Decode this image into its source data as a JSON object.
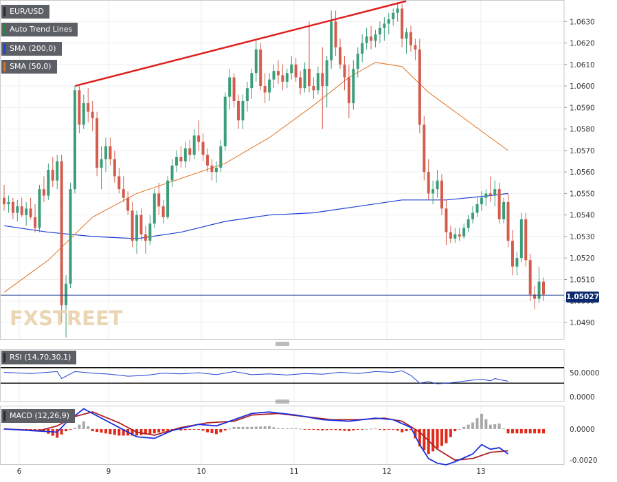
{
  "legend": {
    "symbol": "EUR/USD",
    "trend": "Auto Trend Lines",
    "sma200": "SMA (200,0)",
    "sma50": "SMA (50,0)",
    "rsi": "RSI (14,70,30,1)",
    "macd": "MACD (12,26,9)"
  },
  "logo_text": "FXSTREET",
  "last_price_label": "1.05027",
  "colors": {
    "up": "#3a9e7a",
    "down": "#d45c4c",
    "trendline": "#e02020",
    "sma200": "#1f3fd6",
    "sma50": "#e07020",
    "rsi_line": "#2040d0",
    "macd_line": "#1a2fe0",
    "signal_line": "#b02020",
    "hist_pos": "#a8a8a8",
    "hist_neg": "#e02a1a"
  },
  "chart_data": [
    {
      "type": "candlestick",
      "title": "EUR/USD",
      "x_ticks": [
        "6",
        "9",
        "10",
        "11",
        "12",
        "13"
      ],
      "y_ticks": [
        "1.0490",
        "1.0500",
        "1.0510",
        "1.0520",
        "1.0530",
        "1.0540",
        "1.0550",
        "1.0560",
        "1.0570",
        "1.0580",
        "1.0590",
        "1.0600",
        "1.0610",
        "1.0620",
        "1.0630"
      ],
      "ylim": [
        1.0482,
        1.064
      ],
      "last_price": 1.05027,
      "candles": [
        [
          1.0548,
          1.0554,
          1.0542,
          1.0545
        ],
        [
          1.0545,
          1.0549,
          1.0541,
          1.0546
        ],
        [
          1.0546,
          1.0548,
          1.0538,
          1.0541
        ],
        [
          1.0541,
          1.0547,
          1.0537,
          1.0544
        ],
        [
          1.0544,
          1.0548,
          1.0539,
          1.054
        ],
        [
          1.054,
          1.0546,
          1.0535,
          1.0543
        ],
        [
          1.0543,
          1.0548,
          1.0538,
          1.0539
        ],
        [
          1.0539,
          1.0545,
          1.0532,
          1.0534
        ],
        [
          1.0534,
          1.0554,
          1.0532,
          1.0552
        ],
        [
          1.0552,
          1.0558,
          1.0546,
          1.0549
        ],
        [
          1.0549,
          1.0564,
          1.0547,
          1.0561
        ],
        [
          1.0561,
          1.0567,
          1.0553,
          1.0556
        ],
        [
          1.0556,
          1.0568,
          1.0552,
          1.0565
        ],
        [
          1.0565,
          1.0568,
          1.049,
          1.0498
        ],
        [
          1.0498,
          1.0512,
          1.0483,
          1.0508
        ],
        [
          1.0508,
          1.0555,
          1.0506,
          1.0552
        ],
        [
          1.0552,
          1.06,
          1.055,
          1.0598
        ],
        [
          1.0598,
          1.06,
          1.0578,
          1.0582
        ],
        [
          1.0582,
          1.0596,
          1.058,
          1.0592
        ],
        [
          1.0592,
          1.0599,
          1.0583,
          1.0588
        ],
        [
          1.0588,
          1.0593,
          1.0579,
          1.0585
        ],
        [
          1.0585,
          1.0588,
          1.0558,
          1.0562
        ],
        [
          1.0562,
          1.0572,
          1.0552,
          1.0566
        ],
        [
          1.0566,
          1.0576,
          1.056,
          1.0572
        ],
        [
          1.0572,
          1.0576,
          1.0563,
          1.0566
        ],
        [
          1.0566,
          1.057,
          1.0555,
          1.0558
        ],
        [
          1.0558,
          1.0562,
          1.055,
          1.0552
        ],
        [
          1.0552,
          1.0558,
          1.0546,
          1.0548
        ],
        [
          1.0548,
          1.0551,
          1.054,
          1.0542
        ],
        [
          1.0542,
          1.0546,
          1.0525,
          1.0528
        ],
        [
          1.0528,
          1.0542,
          1.0522,
          1.054
        ],
        [
          1.054,
          1.0543,
          1.0528,
          1.0531
        ],
        [
          1.0531,
          1.0535,
          1.0522,
          1.0528
        ],
        [
          1.0528,
          1.054,
          1.0526,
          1.0536
        ],
        [
          1.0536,
          1.0552,
          1.0534,
          1.055
        ],
        [
          1.055,
          1.0555,
          1.054,
          1.0544
        ],
        [
          1.0544,
          1.0547,
          1.0536,
          1.0539
        ],
        [
          1.0539,
          1.0558,
          1.0538,
          1.0556
        ],
        [
          1.0556,
          1.0566,
          1.0553,
          1.0563
        ],
        [
          1.0563,
          1.057,
          1.056,
          1.0567
        ],
        [
          1.0567,
          1.0572,
          1.0562,
          1.0565
        ],
        [
          1.0565,
          1.0574,
          1.0562,
          1.0571
        ],
        [
          1.0571,
          1.0575,
          1.0565,
          1.0568
        ],
        [
          1.0568,
          1.058,
          1.0566,
          1.0577
        ],
        [
          1.0577,
          1.0584,
          1.057,
          1.0574
        ],
        [
          1.0574,
          1.0578,
          1.0565,
          1.0568
        ],
        [
          1.0568,
          1.0571,
          1.056,
          1.0563
        ],
        [
          1.0563,
          1.0566,
          1.0556,
          1.056
        ],
        [
          1.056,
          1.0565,
          1.0555,
          1.0562
        ],
        [
          1.0562,
          1.0575,
          1.056,
          1.0572
        ],
        [
          1.0572,
          1.0597,
          1.057,
          1.0595
        ],
        [
          1.0595,
          1.0608,
          1.0589,
          1.0604
        ],
        [
          1.0604,
          1.0606,
          1.059,
          1.0593
        ],
        [
          1.0593,
          1.0596,
          1.058,
          1.0584
        ],
        [
          1.0584,
          1.0596,
          1.058,
          1.0593
        ],
        [
          1.0593,
          1.0602,
          1.0588,
          1.0599
        ],
        [
          1.0599,
          1.0608,
          1.0594,
          1.0606
        ],
        [
          1.0606,
          1.0621,
          1.0602,
          1.0617
        ],
        [
          1.0617,
          1.062,
          1.0598,
          1.06
        ],
        [
          1.06,
          1.0606,
          1.0592,
          1.0597
        ],
        [
          1.0597,
          1.0606,
          1.0593,
          1.0603
        ],
        [
          1.0603,
          1.061,
          1.0599,
          1.0607
        ],
        [
          1.0607,
          1.0612,
          1.0601,
          1.0605
        ],
        [
          1.0605,
          1.061,
          1.0598,
          1.0602
        ],
        [
          1.0602,
          1.0608,
          1.0599,
          1.0606
        ],
        [
          1.0606,
          1.0614,
          1.0603,
          1.061
        ],
        [
          1.061,
          1.0613,
          1.0602,
          1.0604
        ],
        [
          1.0604,
          1.0607,
          1.0596,
          1.0599
        ],
        [
          1.0599,
          1.0611,
          1.0597,
          1.0608
        ],
        [
          1.0608,
          1.063,
          1.0597,
          1.06
        ],
        [
          1.06,
          1.0604,
          1.0594,
          1.0598
        ],
        [
          1.0598,
          1.0609,
          1.0596,
          1.0606
        ],
        [
          1.0606,
          1.0618,
          1.058,
          1.06
        ],
        [
          1.06,
          1.0614,
          1.059,
          1.0612
        ],
        [
          1.0612,
          1.0635,
          1.0608,
          1.063
        ],
        [
          1.063,
          1.0635,
          1.0614,
          1.0618
        ],
        [
          1.0618,
          1.0622,
          1.0608,
          1.061
        ],
        [
          1.061,
          1.0614,
          1.0598,
          1.0604
        ],
        [
          1.0604,
          1.061,
          1.0585,
          1.0592
        ],
        [
          1.0592,
          1.0612,
          1.0589,
          1.0608
        ],
        [
          1.0608,
          1.0618,
          1.0604,
          1.0615
        ],
        [
          1.0615,
          1.0624,
          1.0611,
          1.062
        ],
        [
          1.062,
          1.0627,
          1.0617,
          1.0623
        ],
        [
          1.0623,
          1.0628,
          1.0617,
          1.0621
        ],
        [
          1.0621,
          1.0626,
          1.0618,
          1.0624
        ],
        [
          1.0624,
          1.063,
          1.062,
          1.0627
        ],
        [
          1.0627,
          1.0632,
          1.0621,
          1.0629
        ],
        [
          1.0629,
          1.0634,
          1.0624,
          1.0631
        ],
        [
          1.0631,
          1.0636,
          1.0628,
          1.0634
        ],
        [
          1.0634,
          1.0639,
          1.063,
          1.0636
        ],
        [
          1.0636,
          1.0638,
          1.0618,
          1.0622
        ],
        [
          1.0622,
          1.0627,
          1.0615,
          1.0625
        ],
        [
          1.0625,
          1.0628,
          1.0616,
          1.0619
        ],
        [
          1.0619,
          1.0622,
          1.0612,
          1.0617
        ],
        [
          1.0617,
          1.0622,
          1.0578,
          1.0582
        ],
        [
          1.0582,
          1.0586,
          1.0556,
          1.056
        ],
        [
          1.056,
          1.0566,
          1.0547,
          1.055
        ],
        [
          1.055,
          1.0556,
          1.0545,
          1.0552
        ],
        [
          1.0552,
          1.0561,
          1.0548,
          1.0556
        ],
        [
          1.0556,
          1.0559,
          1.054,
          1.0543
        ],
        [
          1.0543,
          1.0547,
          1.0526,
          1.0532
        ],
        [
          1.0532,
          1.0535,
          1.0527,
          1.0529
        ],
        [
          1.0529,
          1.0534,
          1.0527,
          1.0531
        ],
        [
          1.0531,
          1.0534,
          1.0528,
          1.053
        ],
        [
          1.053,
          1.0536,
          1.0529,
          1.0534
        ],
        [
          1.0534,
          1.054,
          1.0532,
          1.0538
        ],
        [
          1.0538,
          1.0544,
          1.0536,
          1.0541
        ],
        [
          1.0541,
          1.0548,
          1.0539,
          1.0545
        ],
        [
          1.0545,
          1.0551,
          1.0542,
          1.0548
        ],
        [
          1.0548,
          1.0552,
          1.0544,
          1.055
        ],
        [
          1.055,
          1.0558,
          1.0546,
          1.0549
        ],
        [
          1.0549,
          1.0556,
          1.0544,
          1.0552
        ],
        [
          1.0552,
          1.0555,
          1.0536,
          1.0538
        ],
        [
          1.0538,
          1.0548,
          1.0536,
          1.0546
        ],
        [
          1.0546,
          1.055,
          1.0525,
          1.0528
        ],
        [
          1.0528,
          1.0533,
          1.0512,
          1.0516
        ],
        [
          1.0516,
          1.0523,
          1.0512,
          1.052
        ],
        [
          1.052,
          1.0541,
          1.0518,
          1.0538
        ],
        [
          1.0538,
          1.0541,
          1.0516,
          1.0519
        ],
        [
          1.0519,
          1.0522,
          1.05,
          1.0503
        ],
        [
          1.0503,
          1.0507,
          1.0496,
          1.0501
        ],
        [
          1.0501,
          1.0516,
          1.0499,
          1.0509
        ],
        [
          1.0509,
          1.0511,
          1.05,
          1.0503
        ]
      ],
      "sma50": [
        [
          0,
          1.0504
        ],
        [
          10,
          1.0519
        ],
        [
          20,
          1.0539
        ],
        [
          30,
          1.055
        ],
        [
          40,
          1.0557
        ],
        [
          50,
          1.0564
        ],
        [
          60,
          1.0576
        ],
        [
          70,
          1.0591
        ],
        [
          78,
          1.0604
        ],
        [
          84,
          1.0611
        ],
        [
          90,
          1.0609
        ],
        [
          96,
          1.0597
        ],
        [
          104,
          1.0585
        ],
        [
          114,
          1.057
        ]
      ],
      "sma200": [
        [
          0,
          1.0535
        ],
        [
          10,
          1.0532
        ],
        [
          20,
          1.053
        ],
        [
          30,
          1.0529
        ],
        [
          40,
          1.0532
        ],
        [
          50,
          1.0537
        ],
        [
          60,
          1.054
        ],
        [
          70,
          1.0541
        ],
        [
          80,
          1.0544
        ],
        [
          90,
          1.0547
        ],
        [
          100,
          1.0547
        ],
        [
          110,
          1.0549
        ],
        [
          114,
          1.055
        ]
      ],
      "trendline": [
        [
          16,
          1.06
        ],
        [
          90,
          1.0639
        ]
      ]
    },
    {
      "type": "line",
      "title": "RSI (14,70,30,1)",
      "y_ticks": [
        "50.0000",
        "0.0000"
      ],
      "levels": [
        70,
        30
      ],
      "ylim": [
        0,
        100
      ],
      "values": [
        [
          0,
          58
        ],
        [
          6,
          55
        ],
        [
          12,
          60
        ],
        [
          13,
          42
        ],
        [
          16,
          60
        ],
        [
          20,
          56
        ],
        [
          24,
          53
        ],
        [
          28,
          48
        ],
        [
          32,
          50
        ],
        [
          36,
          56
        ],
        [
          40,
          54
        ],
        [
          44,
          57
        ],
        [
          48,
          52
        ],
        [
          52,
          60
        ],
        [
          56,
          52
        ],
        [
          60,
          54
        ],
        [
          64,
          51
        ],
        [
          68,
          55
        ],
        [
          72,
          53
        ],
        [
          76,
          58
        ],
        [
          80,
          55
        ],
        [
          84,
          60
        ],
        [
          88,
          58
        ],
        [
          90,
          62
        ],
        [
          92,
          50
        ],
        [
          94,
          30
        ],
        [
          96,
          34
        ],
        [
          98,
          28
        ],
        [
          100,
          30
        ],
        [
          102,
          32
        ],
        [
          104,
          35
        ],
        [
          106,
          38
        ],
        [
          108,
          40
        ],
        [
          110,
          36
        ],
        [
          111,
          42
        ],
        [
          113,
          37
        ],
        [
          114,
          35
        ]
      ]
    },
    {
      "type": "line",
      "title": "MACD (12,26,9)",
      "y_ticks": [
        "0.0000",
        "-0.0020"
      ],
      "ylim": [
        -0.0023,
        0.0015
      ],
      "macd": [
        [
          0,
          0.0
        ],
        [
          6,
          -0.0001
        ],
        [
          12,
          -0.0002
        ],
        [
          14,
          0.0004
        ],
        [
          18,
          0.0013
        ],
        [
          20,
          0.001
        ],
        [
          26,
          0.0001
        ],
        [
          30,
          -0.0005
        ],
        [
          34,
          -0.0006
        ],
        [
          38,
          -0.0001
        ],
        [
          44,
          0.0003
        ],
        [
          48,
          0.0002
        ],
        [
          52,
          0.0006
        ],
        [
          56,
          0.001
        ],
        [
          60,
          0.0011
        ],
        [
          66,
          0.0009
        ],
        [
          72,
          0.0006
        ],
        [
          78,
          0.0005
        ],
        [
          84,
          0.0007
        ],
        [
          88,
          0.0006
        ],
        [
          92,
          0.0001
        ],
        [
          94,
          -0.001
        ],
        [
          96,
          -0.0019
        ],
        [
          98,
          -0.0022
        ],
        [
          100,
          -0.0023
        ],
        [
          102,
          -0.0021
        ],
        [
          106,
          -0.0016
        ],
        [
          108,
          -0.001
        ],
        [
          110,
          -0.0013
        ],
        [
          112,
          -0.0012
        ],
        [
          114,
          -0.0016
        ]
      ],
      "signal": [
        [
          0,
          0.0
        ],
        [
          8,
          -0.0001
        ],
        [
          12,
          0.0002
        ],
        [
          16,
          0.0008
        ],
        [
          20,
          0.0011
        ],
        [
          26,
          0.0004
        ],
        [
          30,
          -0.0002
        ],
        [
          34,
          -0.0004
        ],
        [
          40,
          0.0001
        ],
        [
          46,
          0.0004
        ],
        [
          52,
          0.0005
        ],
        [
          56,
          0.0009
        ],
        [
          62,
          0.001
        ],
        [
          68,
          0.0008
        ],
        [
          74,
          0.0006
        ],
        [
          80,
          0.0006
        ],
        [
          86,
          0.0007
        ],
        [
          90,
          0.0005
        ],
        [
          94,
          -0.0002
        ],
        [
          98,
          -0.0013
        ],
        [
          102,
          -0.002
        ],
        [
          106,
          -0.0019
        ],
        [
          110,
          -0.0015
        ],
        [
          114,
          -0.0014
        ]
      ],
      "hist_scale_note": ""
    }
  ]
}
